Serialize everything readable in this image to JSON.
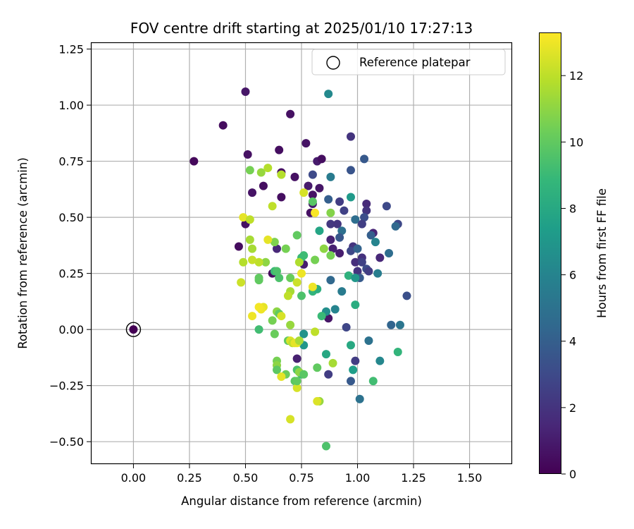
{
  "chart_data": {
    "type": "scatter",
    "title": "FOV centre drift starting at 2025/01/10 17:27:13",
    "xlabel": "Angular distance from reference (arcmin)",
    "ylabel": "Rotation from reference (arcmin)",
    "xlim": [
      -0.19,
      1.69
    ],
    "ylim": [
      -0.6,
      1.28
    ],
    "x_ticks": [
      0.0,
      0.25,
      0.5,
      0.75,
      1.0,
      1.25,
      1.5
    ],
    "x_tick_labels": [
      "0.00",
      "0.25",
      "0.50",
      "0.75",
      "1.00",
      "1.25",
      "1.50"
    ],
    "y_ticks": [
      -0.5,
      -0.25,
      0.0,
      0.25,
      0.5,
      0.75,
      1.0,
      1.25
    ],
    "y_tick_labels": [
      "−0.50",
      "−0.25",
      "0.00",
      "0.25",
      "0.50",
      "0.75",
      "1.00",
      "1.25"
    ],
    "grid": true,
    "legend": {
      "placement": "top-right",
      "entries": [
        "Reference platepar"
      ]
    },
    "reference_point": {
      "x": 0.0,
      "y": 0.0,
      "color_value": 0
    },
    "colorbar": {
      "label": "Hours from first FF file",
      "range": [
        0,
        13.3
      ],
      "ticks": [
        0,
        2,
        4,
        6,
        8,
        10,
        12
      ],
      "tick_labels": [
        "0",
        "2",
        "4",
        "6",
        "8",
        "10",
        "12"
      ],
      "colormap": "viridis",
      "colormap_stops": [
        "#440154",
        "#482878",
        "#3e4989",
        "#31688e",
        "#26828e",
        "#1f9e89",
        "#35b779",
        "#6ece58",
        "#b5de2b",
        "#fde725"
      ]
    },
    "points": [
      [
        0.5,
        1.06,
        0.8
      ],
      [
        0.7,
        0.96,
        0.6
      ],
      [
        0.4,
        0.91,
        0.4
      ],
      [
        0.27,
        0.75,
        0.3
      ],
      [
        0.65,
        0.8,
        0.5
      ],
      [
        0.77,
        0.83,
        0.7
      ],
      [
        0.51,
        0.78,
        0.6
      ],
      [
        0.82,
        0.75,
        1.0
      ],
      [
        0.84,
        0.76,
        0.5
      ],
      [
        0.66,
        0.7,
        0.5
      ],
      [
        0.72,
        0.68,
        0.6
      ],
      [
        0.58,
        0.64,
        0.5
      ],
      [
        0.53,
        0.61,
        0.7
      ],
      [
        0.66,
        0.59,
        0.5
      ],
      [
        0.78,
        0.64,
        1.0
      ],
      [
        0.8,
        0.6,
        0.7
      ],
      [
        0.83,
        0.63,
        0.8
      ],
      [
        0.8,
        0.56,
        0.9
      ],
      [
        0.79,
        0.52,
        0.6
      ],
      [
        0.5,
        0.47,
        0.6
      ],
      [
        0.47,
        0.37,
        0.4
      ],
      [
        0.64,
        0.36,
        1.5
      ],
      [
        0.62,
        0.25,
        0.4
      ],
      [
        0.76,
        0.29,
        1.1
      ],
      [
        0.88,
        0.4,
        1.3
      ],
      [
        0.89,
        0.36,
        1.2
      ],
      [
        0.92,
        0.34,
        1.1
      ],
      [
        0.87,
        0.58,
        4.0
      ],
      [
        0.8,
        0.69,
        3.0
      ],
      [
        0.87,
        0.05,
        0.8
      ],
      [
        0.73,
        -0.13,
        1.2
      ],
      [
        0.87,
        1.05,
        6.3
      ],
      [
        0.97,
        0.86,
        2.0
      ],
      [
        1.03,
        0.76,
        3.7
      ],
      [
        0.97,
        0.71,
        3.5
      ],
      [
        0.88,
        0.68,
        5.5
      ],
      [
        0.92,
        0.57,
        2.4
      ],
      [
        0.97,
        0.59,
        7.2
      ],
      [
        0.94,
        0.53,
        2.6
      ],
      [
        1.04,
        0.56,
        1.6
      ],
      [
        1.04,
        0.53,
        2.0
      ],
      [
        1.03,
        0.5,
        3.2
      ],
      [
        0.99,
        0.49,
        4.8
      ],
      [
        1.02,
        0.47,
        2.5
      ],
      [
        1.13,
        0.55,
        3.0
      ],
      [
        1.18,
        0.47,
        2.9
      ],
      [
        1.17,
        0.46,
        4.5
      ],
      [
        1.07,
        0.43,
        1.4
      ],
      [
        1.06,
        0.42,
        4.0
      ],
      [
        0.88,
        0.47,
        2.2
      ],
      [
        0.91,
        0.47,
        2.1
      ],
      [
        0.93,
        0.44,
        4.9
      ],
      [
        0.92,
        0.41,
        3.6
      ],
      [
        0.98,
        0.37,
        2.0
      ],
      [
        0.97,
        0.35,
        2.9
      ],
      [
        1.0,
        0.36,
        4.2
      ],
      [
        1.02,
        0.32,
        1.9
      ],
      [
        0.99,
        0.3,
        1.8
      ],
      [
        1.02,
        0.3,
        2.6
      ],
      [
        1.04,
        0.27,
        3.1
      ],
      [
        1.05,
        0.26,
        2.4
      ],
      [
        1.0,
        0.26,
        2.0
      ],
      [
        1.08,
        0.39,
        6.0
      ],
      [
        1.1,
        0.32,
        1.5
      ],
      [
        1.14,
        0.34,
        4.7
      ],
      [
        1.22,
        0.15,
        3.3
      ],
      [
        1.15,
        0.02,
        4.3
      ],
      [
        1.19,
        0.02,
        5.2
      ],
      [
        1.01,
        0.23,
        3.8
      ],
      [
        1.09,
        0.25,
        5.6
      ],
      [
        0.88,
        0.22,
        4.5
      ],
      [
        0.95,
        0.01,
        2.8
      ],
      [
        0.9,
        0.09,
        6.0
      ],
      [
        0.93,
        0.17,
        5.5
      ],
      [
        0.96,
        0.24,
        8.5
      ],
      [
        0.99,
        0.23,
        7.0
      ],
      [
        0.86,
        0.08,
        6.6
      ],
      [
        0.84,
        0.06,
        9.0
      ],
      [
        1.05,
        -0.05,
        5.0
      ],
      [
        0.97,
        -0.07,
        8.0
      ],
      [
        0.99,
        0.11,
        8.2
      ],
      [
        0.99,
        -0.14,
        2.4
      ],
      [
        1.1,
        -0.14,
        6.2
      ],
      [
        1.18,
        -0.1,
        8.7
      ],
      [
        0.98,
        -0.18,
        7.4
      ],
      [
        0.97,
        -0.23,
        3.7
      ],
      [
        1.07,
        -0.23,
        9.2
      ],
      [
        1.01,
        -0.31,
        5.0
      ],
      [
        0.87,
        -0.2,
        2.4
      ],
      [
        0.86,
        -0.11,
        7.9
      ],
      [
        0.89,
        -0.15,
        11.5
      ],
      [
        0.73,
        -0.18,
        9.5
      ],
      [
        0.75,
        -0.2,
        9.0
      ],
      [
        0.72,
        -0.23,
        9.8
      ],
      [
        0.86,
        -0.52,
        9.5
      ],
      [
        0.83,
        -0.32,
        11.2
      ],
      [
        0.7,
        -0.4,
        12.5
      ],
      [
        0.76,
        -0.07,
        7.0
      ],
      [
        0.76,
        -0.02,
        6.8
      ],
      [
        0.81,
        -0.01,
        12.0
      ],
      [
        0.75,
        0.15,
        9.5
      ],
      [
        0.8,
        0.17,
        8.7
      ],
      [
        0.82,
        0.18,
        8.3
      ],
      [
        0.7,
        0.23,
        10.2
      ],
      [
        0.65,
        0.23,
        9.5
      ],
      [
        0.7,
        0.17,
        11.5
      ],
      [
        0.69,
        0.15,
        12.0
      ],
      [
        0.73,
        0.21,
        12.3
      ],
      [
        0.75,
        0.25,
        13.0
      ],
      [
        0.8,
        0.19,
        13.0
      ],
      [
        0.83,
        0.44,
        7.8
      ],
      [
        0.88,
        0.33,
        10.5
      ],
      [
        0.85,
        0.36,
        11.0
      ],
      [
        0.88,
        0.52,
        10.8
      ],
      [
        0.81,
        0.52,
        13.2
      ],
      [
        0.8,
        0.57,
        9.8
      ],
      [
        0.76,
        0.61,
        12.5
      ],
      [
        0.73,
        0.42,
        10.0
      ],
      [
        0.75,
        0.32,
        9.0
      ],
      [
        0.74,
        0.3,
        11.7
      ],
      [
        0.81,
        0.31,
        10.5
      ],
      [
        0.76,
        0.33,
        9.1
      ],
      [
        0.68,
        0.36,
        10.5
      ],
      [
        0.63,
        0.39,
        10.7
      ],
      [
        0.6,
        0.4,
        12.8
      ],
      [
        0.63,
        0.26,
        9.0
      ],
      [
        0.64,
        0.26,
        9.5
      ],
      [
        0.59,
        0.3,
        11.0
      ],
      [
        0.56,
        0.3,
        12.0
      ],
      [
        0.53,
        0.31,
        12.2
      ],
      [
        0.53,
        0.36,
        11.5
      ],
      [
        0.52,
        0.4,
        11.5
      ],
      [
        0.49,
        0.3,
        11.8
      ],
      [
        0.48,
        0.21,
        12.3
      ],
      [
        0.49,
        0.5,
        12.8
      ],
      [
        0.52,
        0.49,
        12.0
      ],
      [
        0.52,
        0.71,
        10.5
      ],
      [
        0.57,
        0.7,
        11.2
      ],
      [
        0.6,
        0.72,
        11.8
      ],
      [
        0.66,
        0.69,
        11.8
      ],
      [
        0.62,
        0.55,
        12.0
      ],
      [
        0.56,
        0.23,
        10.0
      ],
      [
        0.56,
        0.22,
        10.0
      ],
      [
        0.58,
        0.1,
        12.8
      ],
      [
        0.57,
        0.09,
        13.0
      ],
      [
        0.56,
        0.1,
        13.1
      ],
      [
        0.53,
        0.06,
        13.0
      ],
      [
        0.56,
        0.0,
        9.2
      ],
      [
        0.62,
        0.04,
        10.5
      ],
      [
        0.64,
        0.08,
        11.0
      ],
      [
        0.65,
        0.07,
        10.0
      ],
      [
        0.66,
        0.06,
        12.5
      ],
      [
        0.7,
        0.02,
        11.2
      ],
      [
        0.63,
        -0.02,
        10.2
      ],
      [
        0.69,
        -0.05,
        10.0
      ],
      [
        0.7,
        -0.05,
        12.6
      ],
      [
        0.71,
        -0.06,
        12.0
      ],
      [
        0.73,
        -0.06,
        13.0
      ],
      [
        0.72,
        -0.06,
        12.8
      ],
      [
        0.74,
        -0.05,
        11.5
      ],
      [
        0.64,
        -0.14,
        10.5
      ],
      [
        0.64,
        -0.16,
        11.0
      ],
      [
        0.64,
        -0.18,
        9.9
      ],
      [
        0.68,
        -0.2,
        10.3
      ],
      [
        0.66,
        -0.21,
        12.8
      ],
      [
        0.74,
        -0.19,
        11.0
      ],
      [
        0.76,
        -0.2,
        9.8
      ],
      [
        0.73,
        -0.26,
        12.5
      ],
      [
        0.82,
        -0.32,
        12.6
      ],
      [
        0.82,
        -0.17,
        10.0
      ],
      [
        0.73,
        -0.23,
        10.0
      ]
    ]
  }
}
